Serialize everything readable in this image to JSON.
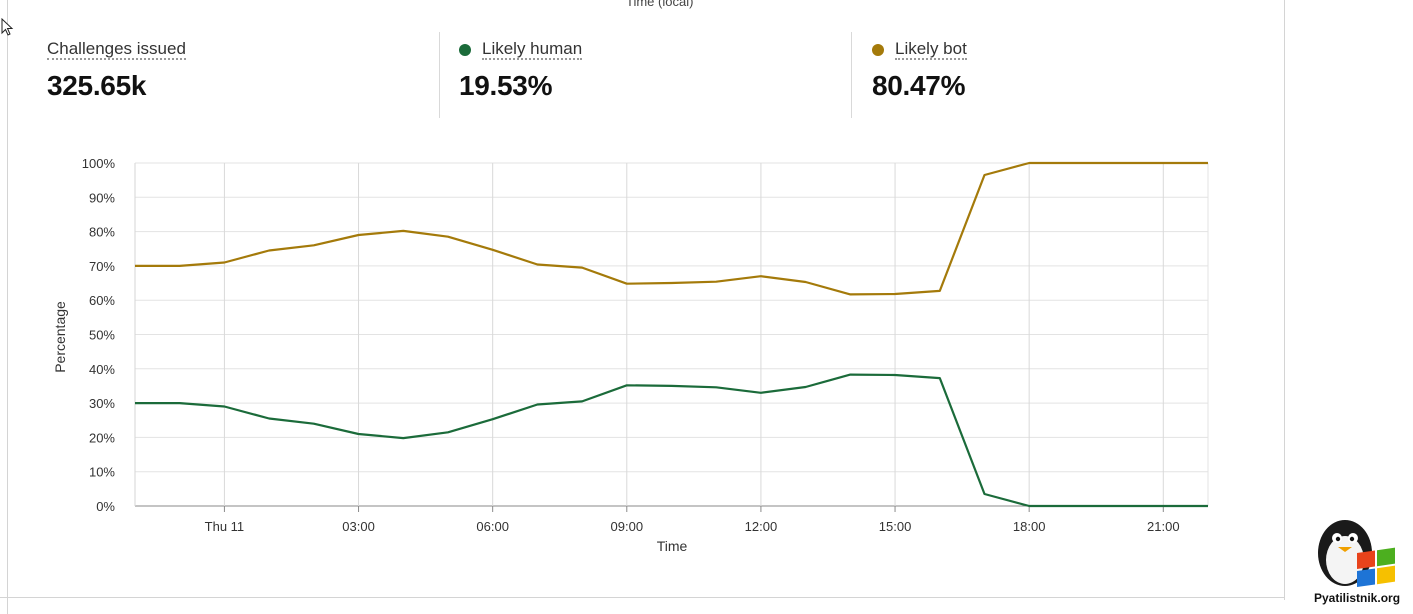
{
  "header": {
    "top_axis_title": "Time (local)"
  },
  "stats": [
    {
      "label": "Challenges issued",
      "value": "325.65k",
      "dot_color": null
    },
    {
      "label": "Likely human",
      "value": "19.53%",
      "dot_color": "#1b6b3a"
    },
    {
      "label": "Likely bot",
      "value": "80.47%",
      "dot_color": "#a47a0a"
    }
  ],
  "chart_data": {
    "type": "line",
    "xlabel": "Time",
    "ylabel": "Percentage",
    "ylim": [
      0,
      100
    ],
    "y_ticks": [
      0,
      10,
      20,
      30,
      40,
      50,
      60,
      70,
      80,
      90,
      100
    ],
    "y_tick_labels": [
      "0%",
      "10%",
      "20%",
      "30%",
      "40%",
      "50%",
      "60%",
      "70%",
      "80%",
      "90%",
      "100%"
    ],
    "x_tick_labels": [
      {
        "hour": 0,
        "label": "Thu 11"
      },
      {
        "hour": 3,
        "label": "03:00"
      },
      {
        "hour": 6,
        "label": "06:00"
      },
      {
        "hour": 9,
        "label": "09:00"
      },
      {
        "hour": 12,
        "label": "12:00"
      },
      {
        "hour": 15,
        "label": "15:00"
      },
      {
        "hour": 18,
        "label": "18:00"
      },
      {
        "hour": 21,
        "label": "21:00"
      }
    ],
    "xlim": [
      -2,
      22
    ],
    "grid": true,
    "x": [
      -2,
      -1,
      0,
      1,
      2,
      3,
      4,
      5,
      6,
      7,
      8,
      9,
      10,
      11,
      12,
      13,
      14,
      15,
      16,
      17,
      18,
      19,
      20,
      21,
      22
    ],
    "series": [
      {
        "name": "Likely human",
        "color": "#1b6b3a",
        "values": [
          30,
          30,
          29,
          25.5,
          24,
          21,
          19.8,
          21.5,
          25.3,
          29.6,
          30.5,
          35.2,
          35,
          34.6,
          33,
          34.7,
          38.3,
          38.2,
          37.3,
          3.5,
          0,
          0,
          0,
          0,
          0
        ]
      },
      {
        "name": "Likely bot",
        "color": "#a47a0a",
        "values": [
          70,
          70,
          71,
          74.5,
          76,
          79,
          80.2,
          78.5,
          74.7,
          70.4,
          69.5,
          64.8,
          65,
          65.4,
          67,
          65.3,
          61.7,
          61.8,
          62.7,
          96.5,
          100,
          100,
          100,
          100,
          100
        ]
      }
    ]
  },
  "watermark": {
    "text": "Pyatilistnik.org"
  }
}
